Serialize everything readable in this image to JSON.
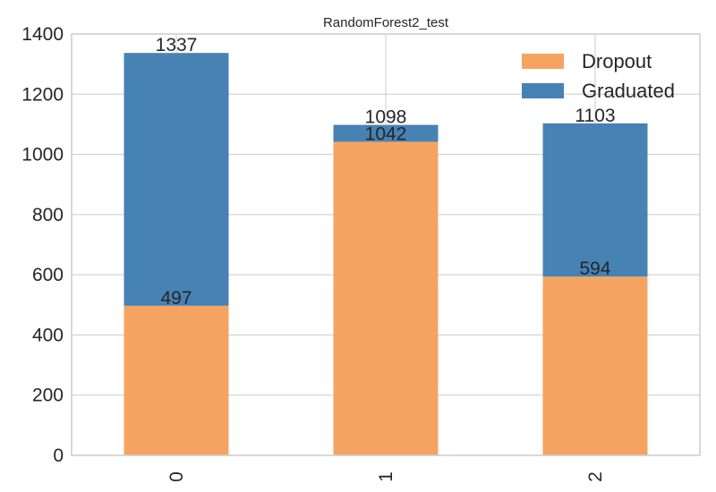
{
  "chart_data": {
    "type": "bar",
    "stacked": true,
    "title": "RandomForest2_test",
    "xlabel": "",
    "ylabel": "",
    "categories": [
      "0",
      "1",
      "2"
    ],
    "ylim": [
      0,
      1400
    ],
    "yticks": [
      0,
      200,
      400,
      600,
      800,
      1000,
      1200,
      1400
    ],
    "grid": true,
    "legend_position": "top-right",
    "series": [
      {
        "name": "Dropout",
        "color": "#f4a460",
        "values": [
          497,
          1042,
          594
        ]
      },
      {
        "name": "Graduated",
        "color": "#4682b4",
        "values": [
          840,
          56,
          509
        ]
      }
    ],
    "bar_labels": {
      "Dropout": [
        "497",
        "1042",
        "594"
      ],
      "Graduated": [
        "1337",
        "1098",
        "1103"
      ]
    }
  }
}
